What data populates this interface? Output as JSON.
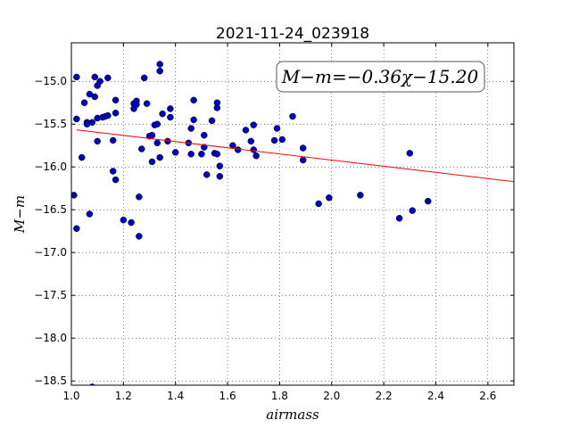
{
  "chart_data": {
    "type": "scatter",
    "title": "2021-11-24_023918",
    "xlabel": "airmass",
    "ylabel": "M−m",
    "xlim": [
      1.0,
      2.7
    ],
    "ylim": [
      -18.55,
      -14.55
    ],
    "y_inverted": true,
    "grid": true,
    "x_ticks": [
      1.0,
      1.2,
      1.4,
      1.6,
      1.8,
      2.0,
      2.2,
      2.4,
      2.6
    ],
    "x_tick_labels": [
      "1.0",
      "1.2",
      "1.4",
      "1.6",
      "1.8",
      "2.0",
      "2.2",
      "2.4",
      "2.6"
    ],
    "y_ticks": [
      -15.0,
      -15.5,
      -16.0,
      -16.5,
      -17.0,
      -17.5,
      -18.0,
      -18.5
    ],
    "y_tick_labels": [
      "−15.0",
      "−15.5",
      "−16.0",
      "−16.5",
      "−17.0",
      "−17.5",
      "−18.0",
      "−18.5"
    ],
    "annotation": "M−m=−0.36χ−15.20",
    "marker_color": "#0000bf",
    "fit_color": "#ff0000",
    "fit": {
      "slope": -0.36,
      "intercept": -15.2,
      "x_range": [
        1.02,
        2.7
      ]
    },
    "points": {
      "x": [
        1.01,
        1.02,
        1.02,
        1.02,
        1.04,
        1.05,
        1.06,
        1.06,
        1.07,
        1.07,
        1.08,
        1.08,
        1.09,
        1.09,
        1.1,
        1.1,
        1.1,
        1.11,
        1.12,
        1.13,
        1.14,
        1.14,
        1.16,
        1.16,
        1.17,
        1.17,
        1.17,
        1.2,
        1.23,
        1.24,
        1.24,
        1.25,
        1.25,
        1.26,
        1.26,
        1.27,
        1.28,
        1.29,
        1.3,
        1.31,
        1.31,
        1.32,
        1.33,
        1.33,
        1.34,
        1.34,
        1.34,
        1.35,
        1.37,
        1.38,
        1.38,
        1.4,
        1.45,
        1.46,
        1.46,
        1.47,
        1.47,
        1.5,
        1.51,
        1.51,
        1.52,
        1.54,
        1.55,
        1.56,
        1.56,
        1.56,
        1.57,
        1.57,
        1.62,
        1.64,
        1.67,
        1.69,
        1.7,
        1.7,
        1.71,
        1.78,
        1.79,
        1.81,
        1.85,
        1.89,
        1.89,
        1.95,
        1.99,
        2.11,
        2.26,
        2.3,
        2.31,
        2.37
      ],
      "y": [
        -16.33,
        -14.95,
        -15.44,
        -16.72,
        -15.89,
        -15.25,
        -15.48,
        -15.5,
        -15.15,
        -16.55,
        -15.48,
        -18.57,
        -14.95,
        -15.18,
        -15.05,
        -15.43,
        -15.7,
        -15.0,
        -15.42,
        -15.41,
        -14.96,
        -15.4,
        -15.69,
        -16.05,
        -15.22,
        -15.37,
        -16.15,
        -16.62,
        -16.65,
        -15.26,
        -15.32,
        -15.23,
        -15.27,
        -16.81,
        -16.35,
        -15.79,
        -14.96,
        -15.26,
        -15.64,
        -15.63,
        -15.94,
        -15.51,
        -15.5,
        -15.72,
        -14.8,
        -14.88,
        -15.89,
        -15.38,
        -15.7,
        -15.32,
        -15.42,
        -15.83,
        -15.72,
        -15.55,
        -15.85,
        -15.22,
        -15.45,
        -15.85,
        -15.63,
        -15.77,
        -16.09,
        -15.46,
        -15.84,
        -15.25,
        -15.31,
        -15.85,
        -15.99,
        -16.11,
        -15.75,
        -15.8,
        -15.57,
        -15.7,
        -15.8,
        -15.51,
        -15.87,
        -15.69,
        -15.55,
        -15.68,
        -15.41,
        -15.78,
        -15.92,
        -16.43,
        -16.36,
        -16.33,
        -16.6,
        -15.84,
        -16.51,
        -16.4
      ]
    }
  }
}
